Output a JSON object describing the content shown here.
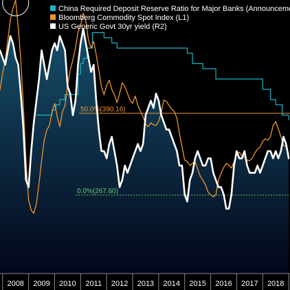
{
  "colors": {
    "china_rrr": "#1fb5c4",
    "commodity": "#f0962e",
    "yield": "#ffffff",
    "fib_50": "#f0962e",
    "fib_0": "#5ed36a",
    "area_top": "#16506a",
    "area_bottom": "#03061a",
    "background": "#000000"
  },
  "chart_data": {
    "type": "line",
    "legend_position": "top-left",
    "grid": false,
    "x_tick_labels": [
      "2008",
      "2009",
      "2010",
      "2011",
      "2012",
      "2013",
      "2014",
      "2015",
      "2016",
      "2017",
      "2018"
    ],
    "xlim": [
      2007.9,
      2019.05
    ],
    "left_ylim": [
      150,
      560
    ],
    "right_ylim": [
      1.4,
      5.2
    ],
    "series": [
      {
        "name": "China Required Deposit Reserve Ratio for Major Banks (Announcement Date)",
        "axis": "hidden",
        "x": [
          2009.3,
          2009.9,
          2010.05,
          2010.2,
          2010.4,
          2010.9,
          2011.0,
          2011.1,
          2011.25,
          2011.45,
          2011.9,
          2012.2,
          2012.4,
          2015.1,
          2015.3,
          2015.7,
          2016.2,
          2018.0,
          2018.3,
          2018.5,
          2018.75,
          2019.0
        ],
        "values": [
          13.5,
          14.0,
          14.5,
          15.0,
          15.5,
          17.5,
          18.5,
          19.0,
          20.0,
          21.5,
          21.0,
          20.5,
          20.0,
          19.5,
          18.5,
          18.0,
          17.0,
          16.0,
          15.0,
          14.5,
          13.5,
          13.0
        ]
      },
      {
        "name": "Bloomberg Commodity Spot Index (L1)",
        "axis": "left",
        "x": [
          2007.9,
          2008.0,
          2008.1,
          2008.2,
          2008.3,
          2008.4,
          2008.5,
          2008.6,
          2008.7,
          2008.8,
          2008.9,
          2009.0,
          2009.1,
          2009.2,
          2009.3,
          2009.4,
          2009.5,
          2009.6,
          2009.7,
          2009.8,
          2009.9,
          2010.0,
          2010.1,
          2010.2,
          2010.3,
          2010.4,
          2010.5,
          2010.6,
          2010.7,
          2010.8,
          2010.9,
          2011.0,
          2011.1,
          2011.2,
          2011.3,
          2011.4,
          2011.5,
          2011.6,
          2011.7,
          2011.8,
          2011.9,
          2012.0,
          2012.1,
          2012.2,
          2012.3,
          2012.4,
          2012.5,
          2012.6,
          2012.7,
          2012.8,
          2012.9,
          2013.0,
          2013.1,
          2013.2,
          2013.3,
          2013.4,
          2013.5,
          2013.6,
          2013.7,
          2013.8,
          2013.9,
          2014.0,
          2014.1,
          2014.2,
          2014.3,
          2014.4,
          2014.5,
          2014.6,
          2014.7,
          2014.8,
          2014.9,
          2015.0,
          2015.1,
          2015.2,
          2015.3,
          2015.4,
          2015.5,
          2015.6,
          2015.7,
          2015.8,
          2015.9,
          2016.0,
          2016.1,
          2016.2,
          2016.3,
          2016.4,
          2016.5,
          2016.6,
          2016.7,
          2016.8,
          2016.9,
          2017.0,
          2017.1,
          2017.2,
          2017.3,
          2017.4,
          2017.5,
          2017.6,
          2017.7,
          2017.8,
          2017.9,
          2018.0,
          2018.1,
          2018.2,
          2018.3,
          2018.4,
          2018.5,
          2018.6,
          2018.7,
          2018.8,
          2018.9,
          2019.0
        ],
        "values": [
          425,
          450,
          470,
          500,
          530,
          548,
          560,
          520,
          470,
          400,
          320,
          260,
          245,
          240,
          255,
          285,
          320,
          350,
          365,
          372,
          392,
          405,
          385,
          370,
          392,
          402,
          432,
          455,
          470,
          488,
          512,
          522,
          540,
          528,
          500,
          488,
          498,
          478,
          455,
          430,
          418,
          432,
          440,
          426,
          418,
          406,
          420,
          436,
          430,
          420,
          410,
          405,
          416,
          402,
          393,
          385,
          374,
          370,
          376,
          373,
          372,
          378,
          392,
          410,
          408,
          402,
          396,
          393,
          383,
          360,
          340,
          320,
          318,
          312,
          315,
          318,
          307,
          296,
          290,
          283,
          272,
          268,
          265,
          268,
          290,
          300,
          309,
          315,
          312,
          308,
          318,
          328,
          332,
          326,
          324,
          320,
          319,
          323,
          331,
          336,
          340,
          348,
          352,
          350,
          355,
          372,
          378,
          367,
          355,
          342,
          340,
          330
        ]
      },
      {
        "name": "US Generic Govt 30yr yield (R2)",
        "axis": "right",
        "x": [
          2007.9,
          2008.0,
          2008.1,
          2008.2,
          2008.3,
          2008.4,
          2008.5,
          2008.6,
          2008.7,
          2008.8,
          2008.9,
          2009.0,
          2009.1,
          2009.2,
          2009.3,
          2009.4,
          2009.5,
          2009.6,
          2009.7,
          2009.8,
          2009.9,
          2010.0,
          2010.1,
          2010.2,
          2010.3,
          2010.4,
          2010.5,
          2010.6,
          2010.7,
          2010.8,
          2010.9,
          2011.0,
          2011.1,
          2011.2,
          2011.3,
          2011.4,
          2011.5,
          2011.6,
          2011.7,
          2011.8,
          2011.9,
          2012.0,
          2012.1,
          2012.2,
          2012.3,
          2012.4,
          2012.5,
          2012.6,
          2012.7,
          2012.8,
          2012.9,
          2013.0,
          2013.1,
          2013.2,
          2013.3,
          2013.4,
          2013.5,
          2013.6,
          2013.7,
          2013.8,
          2013.9,
          2014.0,
          2014.1,
          2014.2,
          2014.3,
          2014.4,
          2014.5,
          2014.6,
          2014.7,
          2014.8,
          2014.9,
          2015.0,
          2015.1,
          2015.2,
          2015.3,
          2015.4,
          2015.5,
          2015.6,
          2015.7,
          2015.8,
          2015.9,
          2016.0,
          2016.1,
          2016.2,
          2016.3,
          2016.4,
          2016.5,
          2016.6,
          2016.7,
          2016.8,
          2016.9,
          2017.0,
          2017.1,
          2017.2,
          2017.3,
          2017.4,
          2017.5,
          2017.6,
          2017.7,
          2017.8,
          2017.9,
          2018.0,
          2018.1,
          2018.2,
          2018.3,
          2018.4,
          2018.5,
          2018.6,
          2018.7,
          2018.8,
          2018.9,
          2019.0
        ],
        "values": [
          4.5,
          4.4,
          4.3,
          4.5,
          4.7,
          4.6,
          4.4,
          4.3,
          3.9,
          3.4,
          2.7,
          2.6,
          3.1,
          3.5,
          3.8,
          4.1,
          4.5,
          4.3,
          4.1,
          4.3,
          4.5,
          4.6,
          4.5,
          4.7,
          4.6,
          4.5,
          4.0,
          3.9,
          3.6,
          3.8,
          4.3,
          4.6,
          4.8,
          4.6,
          4.4,
          4.2,
          4.3,
          3.8,
          3.4,
          3.1,
          3.1,
          3.0,
          3.2,
          3.3,
          3.1,
          2.9,
          2.6,
          2.7,
          2.9,
          2.8,
          2.9,
          3.0,
          3.1,
          3.2,
          3.1,
          3.2,
          3.6,
          3.7,
          3.8,
          3.7,
          3.9,
          3.8,
          3.6,
          3.5,
          3.4,
          3.4,
          3.3,
          3.2,
          3.1,
          2.9,
          2.9,
          2.5,
          2.4,
          2.7,
          2.8,
          3.0,
          3.1,
          3.0,
          2.9,
          2.9,
          3.0,
          3.0,
          2.8,
          2.7,
          2.6,
          2.6,
          2.5,
          2.3,
          2.3,
          2.5,
          2.9,
          3.1,
          3.0,
          3.0,
          3.1,
          2.9,
          2.8,
          2.8,
          2.8,
          2.9,
          2.8,
          2.9,
          3.0,
          3.1,
          3.1,
          3.0,
          3.1,
          3.0,
          3.1,
          3.3,
          3.2,
          3.0
        ]
      }
    ],
    "reference_lines": [
      {
        "label": "50.0%(390.16)",
        "value": 390.16,
        "axis": "left",
        "color_key": "fib_50"
      },
      {
        "label": "0.0%(267.60)",
        "value": 267.6,
        "axis": "left",
        "color_key": "fib_0"
      }
    ]
  }
}
